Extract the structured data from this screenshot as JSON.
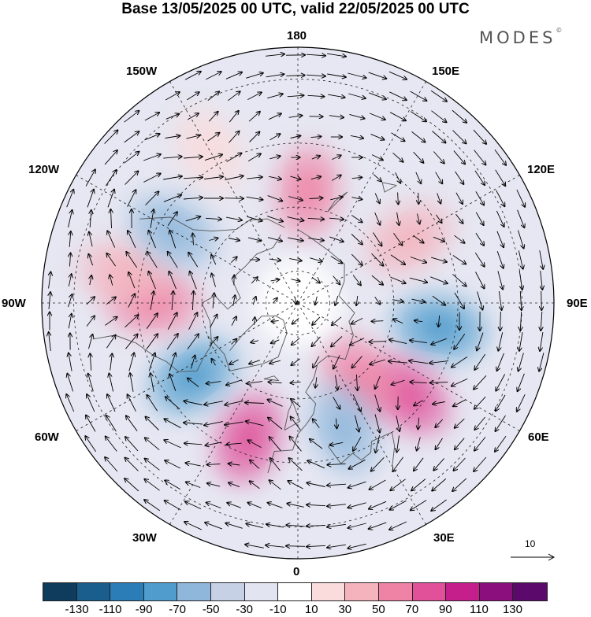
{
  "title": "Base 13/05/2025 00 UTC, valid 22/05/2025 00 UTC",
  "logo": "MODES",
  "logo_mark": "©",
  "longitude_labels": {
    "top": "180",
    "bottom": "0",
    "left": "90W",
    "right": "90E",
    "upper_left_1": "150W",
    "upper_left_2": "120W",
    "upper_right_1": "150E",
    "upper_right_2": "120E",
    "lower_left_1": "60W",
    "lower_left_2": "30W",
    "lower_right_1": "60E",
    "lower_right_2": "30E"
  },
  "reference_vector_label": "10",
  "colorbar": {
    "colors": [
      "#0f3b5c",
      "#1a5e8e",
      "#2b7db8",
      "#4f9ccd",
      "#8fb7db",
      "#c6d1e6",
      "#e3e4f1",
      "#ffffff",
      "#fadcdc",
      "#f4b3bd",
      "#ef83a5",
      "#e0519a",
      "#c41f8b",
      "#8c0f7e",
      "#5b0a6b"
    ],
    "tick_labels": [
      "-130",
      "-110",
      "-90",
      "-70",
      "-50",
      "-30",
      "-10",
      "10",
      "30",
      "50",
      "70",
      "90",
      "110",
      "130"
    ]
  },
  "anomaly_centers": [
    {
      "lon": 80,
      "lat": 45,
      "value": -70,
      "color": "#4f9ccd"
    },
    {
      "lon": 50,
      "lat": 45,
      "value": 90,
      "color": "#e0519a"
    },
    {
      "lon": 40,
      "lat": 60,
      "value": 70,
      "color": "#ef83a5"
    },
    {
      "lon": 120,
      "lat": 50,
      "value": 50,
      "color": "#f4b3bd"
    },
    {
      "lon": 175,
      "lat": 55,
      "value": 70,
      "color": "#ef83a5"
    },
    {
      "lon": 20,
      "lat": 48,
      "value": -50,
      "color": "#8fb7db"
    },
    {
      "lon": -20,
      "lat": 45,
      "value": 70,
      "color": "#e0519a"
    },
    {
      "lon": -55,
      "lat": 50,
      "value": -70,
      "color": "#4f9ccd"
    },
    {
      "lon": -90,
      "lat": 45,
      "value": 70,
      "color": "#ef83a5"
    },
    {
      "lon": -100,
      "lat": 35,
      "value": 50,
      "color": "#f4b3bd"
    },
    {
      "lon": -150,
      "lat": 35,
      "value": 30,
      "color": "#fadcdc"
    },
    {
      "lon": -120,
      "lat": 45,
      "value": -50,
      "color": "#8fb7db"
    }
  ]
}
